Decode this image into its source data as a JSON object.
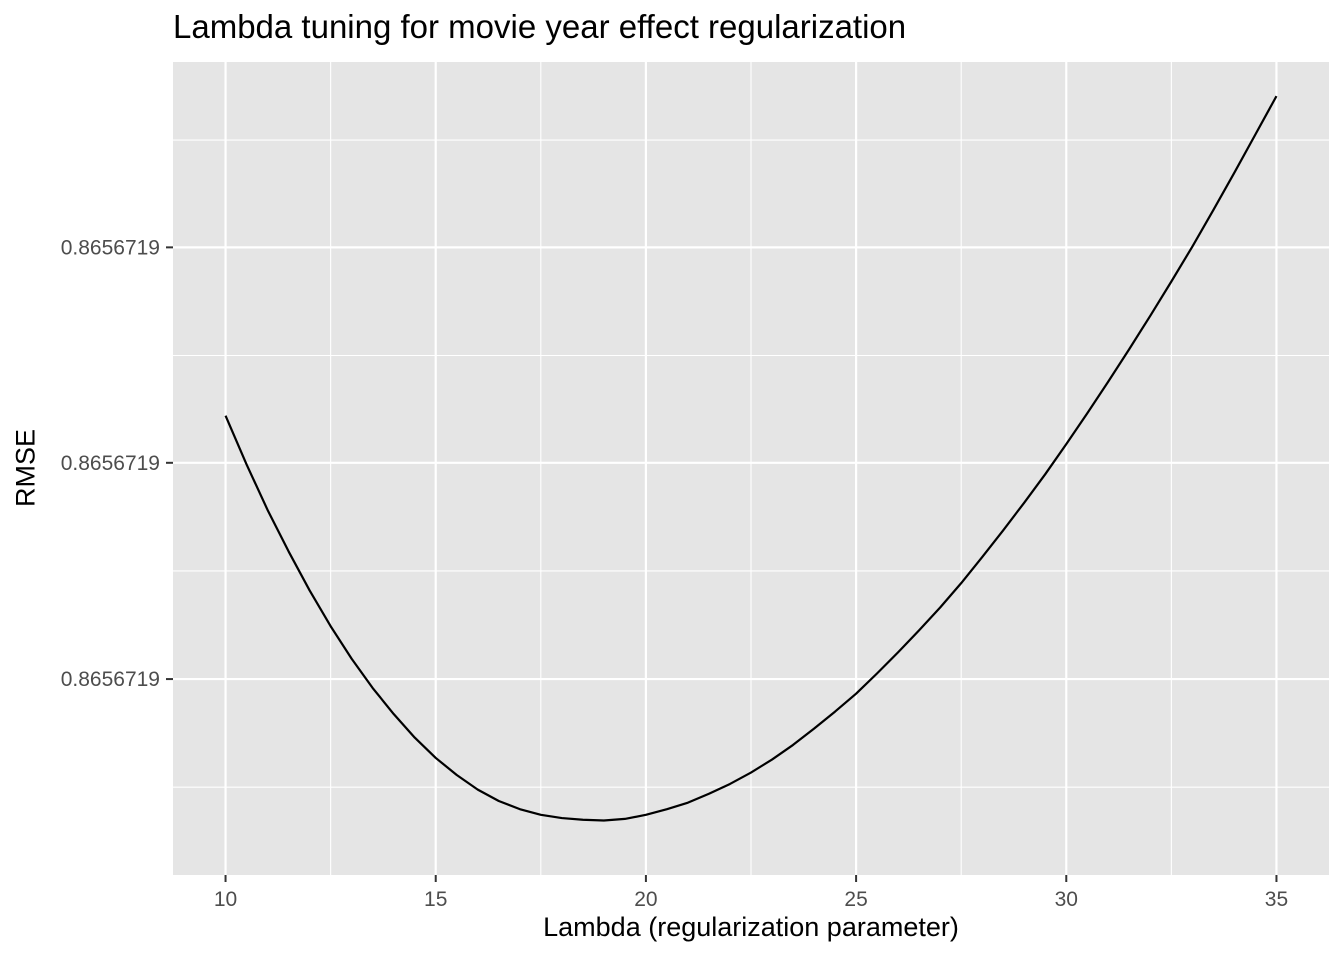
{
  "chart_data": {
    "type": "line",
    "title": "Lambda tuning for movie year effect regularization",
    "xlabel": "Lambda (regularization parameter)",
    "ylabel": "RMSE",
    "xlim": [
      8.75,
      36.25
    ],
    "x_ticks": [
      10,
      15,
      20,
      25,
      30,
      35
    ],
    "x_tick_labels": [
      "10",
      "15",
      "20",
      "25",
      "30",
      "35"
    ],
    "y_tick_labels": [
      "0.8656719",
      "0.8656719",
      "0.8656719"
    ],
    "grid": true,
    "legend": "none",
    "series": [
      {
        "x": [
          10,
          10.5,
          11,
          11.5,
          12,
          12.5,
          13,
          13.5,
          14,
          14.5,
          15,
          15.5,
          16,
          16.5,
          17,
          17.5,
          18,
          18.5,
          19,
          19.5,
          20,
          20.5,
          21,
          21.5,
          22,
          22.5,
          23,
          23.5,
          24,
          24.5,
          25,
          25.5,
          26,
          26.5,
          27,
          27.5,
          28,
          28.5,
          29,
          29.5,
          30,
          30.5,
          31,
          31.5,
          32,
          32.5,
          33,
          33.5,
          34,
          34.5,
          35
        ],
        "y": [
          0.565,
          0.505,
          0.449,
          0.398,
          0.35,
          0.306,
          0.266,
          0.23,
          0.198,
          0.169,
          0.144,
          0.123,
          0.105,
          0.091,
          0.081,
          0.074,
          0.07,
          0.068,
          0.067,
          0.069,
          0.074,
          0.081,
          0.089,
          0.1,
          0.112,
          0.126,
          0.142,
          0.16,
          0.18,
          0.201,
          0.223,
          0.248,
          0.274,
          0.301,
          0.329,
          0.359,
          0.391,
          0.424,
          0.458,
          0.493,
          0.53,
          0.568,
          0.607,
          0.647,
          0.688,
          0.73,
          0.773,
          0.818,
          0.864,
          0.911,
          0.958
        ]
      }
    ]
  },
  "style": {
    "panel_bg": "#e5e5e5",
    "grid_major": "#ffffff",
    "line_color": "#000000",
    "tick_text": "#4d4d4d",
    "tick_mark": "#333333"
  }
}
